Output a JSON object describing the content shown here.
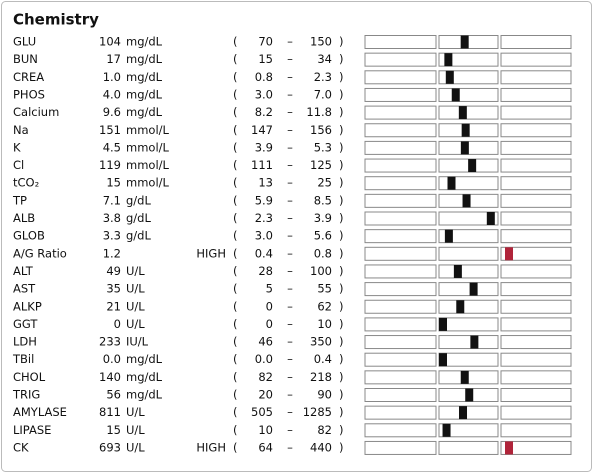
{
  "title": "Chemistry",
  "range_open": "(",
  "range_sep": "–",
  "range_close": ")",
  "rows": [
    {
      "name": "GLU",
      "value": "104",
      "unit": "mg/dL",
      "low": "70",
      "high": "150"
    },
    {
      "name": "BUN",
      "value": "17",
      "unit": "mg/dL",
      "low": "15",
      "high": "34"
    },
    {
      "name": "CREA",
      "value": "1.0",
      "unit": "mg/dL",
      "low": "0.8",
      "high": "2.3"
    },
    {
      "name": "PHOS",
      "value": "4.0",
      "unit": "mg/dL",
      "low": "3.0",
      "high": "7.0"
    },
    {
      "name": "Calcium",
      "value": "9.6",
      "unit": "mg/dL",
      "low": "8.2",
      "high": "11.8"
    },
    {
      "name": "Na",
      "value": "151",
      "unit": "mmol/L",
      "low": "147",
      "high": "156"
    },
    {
      "name": "K",
      "value": "4.5",
      "unit": "mmol/L",
      "low": "3.9",
      "high": "5.3"
    },
    {
      "name": "Cl",
      "value": "119",
      "unit": "mmol/L",
      "low": "111",
      "high": "125"
    },
    {
      "name": "tCO₂",
      "value": "15",
      "unit": "mmol/L",
      "low": "13",
      "high": "25"
    },
    {
      "name": "TP",
      "value": "7.1",
      "unit": "g/dL",
      "low": "5.9",
      "high": "8.5"
    },
    {
      "name": "ALB",
      "value": "3.8",
      "unit": "g/dL",
      "low": "2.3",
      "high": "3.9"
    },
    {
      "name": "GLOB",
      "value": "3.3",
      "unit": "g/dL",
      "low": "3.0",
      "high": "5.6"
    },
    {
      "name": "A/G Ratio",
      "value": "1.2",
      "flag": "HIGH",
      "low": "0.4",
      "high": "0.8"
    },
    {
      "name": "ALT",
      "value": "49",
      "unit": "U/L",
      "low": "28",
      "high": "100"
    },
    {
      "name": "AST",
      "value": "35",
      "unit": "U/L",
      "low": "5",
      "high": "55"
    },
    {
      "name": "ALKP",
      "value": "21",
      "unit": "U/L",
      "low": "0",
      "high": "62"
    },
    {
      "name": "GGT",
      "value": "0",
      "unit": "U/L",
      "low": "0",
      "high": "10"
    },
    {
      "name": "LDH",
      "value": "233",
      "unit": "IU/L",
      "low": "46",
      "high": "350"
    },
    {
      "name": "TBil",
      "value": "0.0",
      "unit": "mg/dL",
      "low": "0.0",
      "high": "0.4"
    },
    {
      "name": "CHOL",
      "value": "140",
      "unit": "mg/dL",
      "low": "82",
      "high": "218"
    },
    {
      "name": "TRIG",
      "value": "56",
      "unit": "mg/dL",
      "low": "20",
      "high": "90"
    },
    {
      "name": "AMYLASE",
      "value": "811",
      "unit": "U/L",
      "low": "505",
      "high": "1285"
    },
    {
      "name": "LIPASE",
      "value": "15",
      "unit": "U/L",
      "low": "10",
      "high": "82"
    },
    {
      "name": "CK",
      "value": "693",
      "unit": "U/L",
      "flag": "HIGH",
      "low": "64",
      "high": "440"
    }
  ]
}
